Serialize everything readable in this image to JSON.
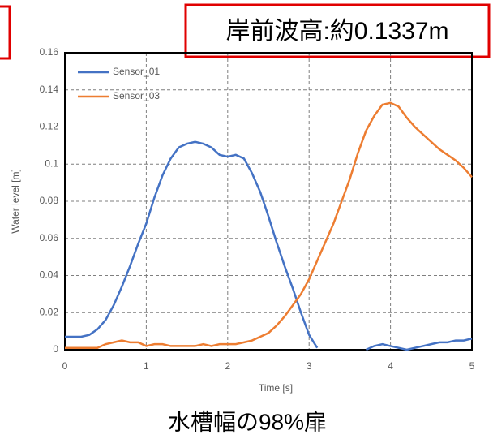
{
  "chart_data": {
    "type": "line",
    "annotation": "岸前波高:約0.1337m",
    "caption": "水槽幅の98%扉",
    "xlabel": "Time [s]",
    "ylabel": "Water level [m]",
    "x": [
      0,
      0.1,
      0.2,
      0.3,
      0.4,
      0.5,
      0.6,
      0.7,
      0.8,
      0.9,
      1,
      1.1,
      1.2,
      1.3,
      1.4,
      1.5,
      1.6,
      1.7,
      1.8,
      1.9,
      2,
      2.1,
      2.2,
      2.3,
      2.4,
      2.5,
      2.6,
      2.7,
      2.8,
      2.9,
      3,
      3.1,
      3.2,
      3.3,
      3.4,
      3.5,
      3.6,
      3.7,
      3.8,
      3.9,
      4,
      4.1,
      4.2,
      4.3,
      4.4,
      4.5,
      4.6,
      4.7,
      4.8,
      4.9,
      5
    ],
    "series": [
      {
        "name": "Sensor_01",
        "color": "#4472c4",
        "values": [
          0.007,
          0.007,
          0.007,
          0.008,
          0.011,
          0.016,
          0.024,
          0.034,
          0.045,
          0.057,
          0.068,
          0.082,
          0.094,
          0.103,
          0.109,
          0.111,
          0.112,
          0.111,
          0.109,
          0.105,
          0.104,
          0.105,
          0.103,
          0.095,
          0.085,
          0.072,
          0.058,
          0.045,
          0.033,
          0.02,
          0.008,
          0.001,
          null,
          null,
          null,
          null,
          null,
          0,
          0.002,
          0.003,
          0.002,
          0.001,
          0,
          0.001,
          0.002,
          0.003,
          0.004,
          0.004,
          0.005,
          0.005,
          0.006
        ]
      },
      {
        "name": "Sensor_03",
        "color": "#ed7d31",
        "values": [
          0.001,
          0.001,
          0.001,
          0.001,
          0.001,
          0.003,
          0.004,
          0.005,
          0.004,
          0.004,
          0.002,
          0.003,
          0.003,
          0.002,
          0.002,
          0.002,
          0.002,
          0.003,
          0.002,
          0.003,
          0.003,
          0.003,
          0.004,
          0.005,
          0.007,
          0.009,
          0.013,
          0.018,
          0.024,
          0.03,
          0.038,
          0.048,
          0.058,
          0.068,
          0.08,
          0.092,
          0.106,
          0.118,
          0.126,
          0.132,
          0.133,
          0.131,
          0.125,
          0.12,
          0.116,
          0.112,
          0.108,
          0.105,
          0.102,
          0.098,
          0.093
        ]
      }
    ],
    "xlim": [
      0,
      5
    ],
    "xticks": [
      0,
      1,
      2,
      3,
      4,
      5
    ],
    "ylim": [
      0,
      0.16
    ],
    "yticks": [
      0,
      0.02,
      0.04,
      0.06,
      0.08,
      0.1,
      0.12,
      0.14,
      0.16
    ],
    "grid": true,
    "legend": "upper left"
  }
}
